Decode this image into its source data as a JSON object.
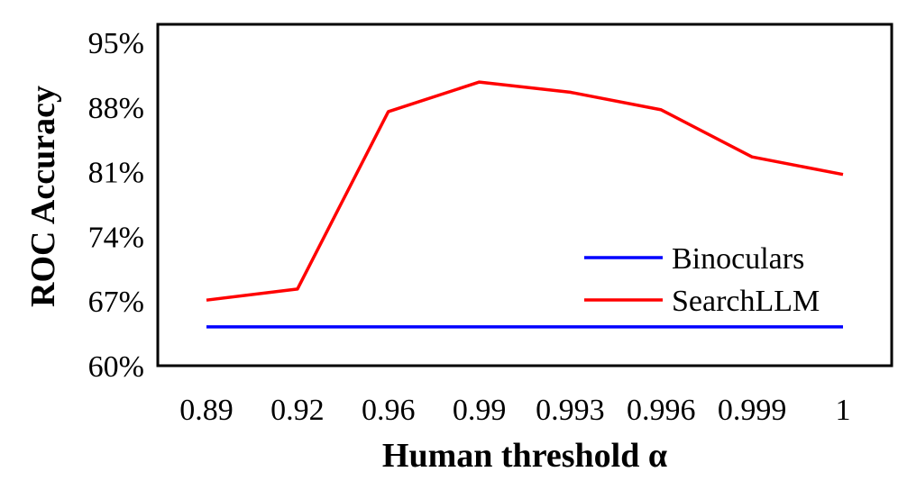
{
  "chart_data": {
    "type": "line",
    "title": "",
    "xlabel": "Human threshold α",
    "ylabel": "ROC Accuracy",
    "categories": [
      "0.89",
      "0.92",
      "0.96",
      "0.99",
      "0.993",
      "0.996",
      "0.999",
      "1"
    ],
    "y_ticks": [
      "60%",
      "67%",
      "74%",
      "81%",
      "88%",
      "95%"
    ],
    "ylim": [
      60,
      95
    ],
    "grid": false,
    "legend_position": "lower-right",
    "series": [
      {
        "name": "Binoculars",
        "color": "#0000ff",
        "values": [
          64.2,
          64.2,
          64.2,
          64.2,
          64.2,
          64.2,
          64.2,
          64.2
        ]
      },
      {
        "name": "SearchLLM",
        "color": "#ff0000",
        "values": [
          67.1,
          68.3,
          87.5,
          90.7,
          89.6,
          87.7,
          82.6,
          80.7
        ]
      }
    ]
  }
}
